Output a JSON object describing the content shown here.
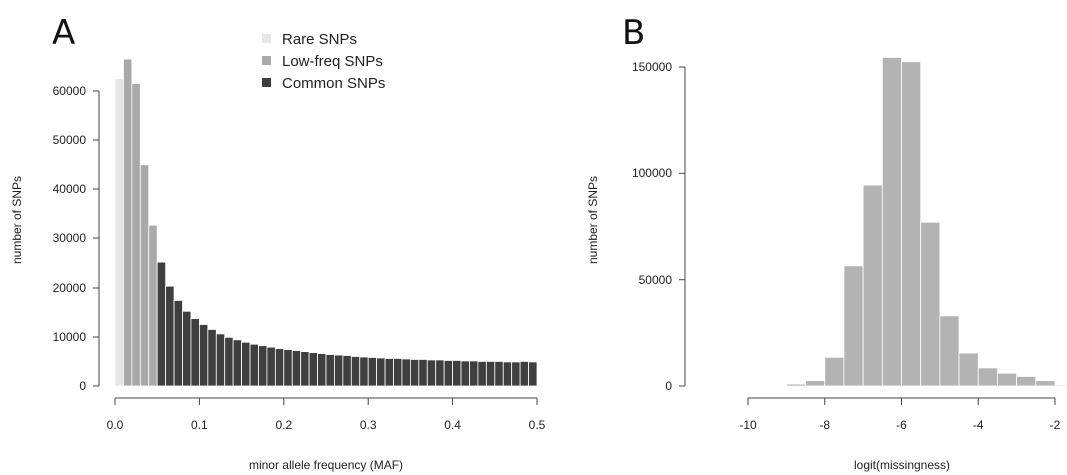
{
  "chart_data": [
    {
      "panel": "A",
      "type": "bar",
      "xlabel": "minor allele frequency (MAF)",
      "ylabel": "number of SNPs",
      "xlim": [
        0,
        0.5
      ],
      "ylim": [
        0,
        60000
      ],
      "x_ticks": [
        "0.0",
        "0.1",
        "0.2",
        "0.3",
        "0.4",
        "0.5"
      ],
      "x_tick_values": [
        0,
        0.1,
        0.2,
        0.3,
        0.4,
        0.5
      ],
      "y_ticks": [
        "0",
        "10000",
        "20000",
        "30000",
        "40000",
        "50000",
        "60000"
      ],
      "y_tick_values": [
        0,
        10000,
        20000,
        30000,
        40000,
        50000,
        60000
      ],
      "bin_width": 0.01,
      "bin_starts": [
        0.0,
        0.01,
        0.02,
        0.03,
        0.04,
        0.05,
        0.06,
        0.07,
        0.08,
        0.09,
        0.1,
        0.11,
        0.12,
        0.13,
        0.14,
        0.15,
        0.16,
        0.17,
        0.18,
        0.19,
        0.2,
        0.21,
        0.22,
        0.23,
        0.24,
        0.25,
        0.26,
        0.27,
        0.28,
        0.29,
        0.3,
        0.31,
        0.32,
        0.33,
        0.34,
        0.35,
        0.36,
        0.37,
        0.38,
        0.39,
        0.4,
        0.41,
        0.42,
        0.43,
        0.44,
        0.45,
        0.46,
        0.47,
        0.48,
        0.49
      ],
      "values": [
        62500,
        66500,
        61500,
        45000,
        32700,
        25200,
        20300,
        17400,
        15200,
        13700,
        12500,
        11500,
        10600,
        9900,
        9400,
        8900,
        8500,
        8200,
        7900,
        7600,
        7400,
        7200,
        7000,
        6800,
        6600,
        6400,
        6300,
        6200,
        6000,
        5900,
        5800,
        5700,
        5600,
        5600,
        5500,
        5400,
        5400,
        5300,
        5300,
        5200,
        5200,
        5100,
        5100,
        5000,
        5000,
        5000,
        4900,
        4900,
        5000,
        4900
      ],
      "category_per_bin": [
        "rare",
        "low",
        "low",
        "low",
        "low",
        "common",
        "common",
        "common",
        "common",
        "common",
        "common",
        "common",
        "common",
        "common",
        "common",
        "common",
        "common",
        "common",
        "common",
        "common",
        "common",
        "common",
        "common",
        "common",
        "common",
        "common",
        "common",
        "common",
        "common",
        "common",
        "common",
        "common",
        "common",
        "common",
        "common",
        "common",
        "common",
        "common",
        "common",
        "common",
        "common",
        "common",
        "common",
        "common",
        "common",
        "common",
        "common",
        "common",
        "common",
        "common"
      ],
      "legend": [
        {
          "key": "rare",
          "label": "Rare SNPs",
          "color": "#e6e6e6"
        },
        {
          "key": "low",
          "label": "Low-freq SNPs",
          "color": "#a9a9a9"
        },
        {
          "key": "common",
          "label": "Common SNPs",
          "color": "#3f3f3f"
        }
      ],
      "legend_position": "top-center"
    },
    {
      "panel": "B",
      "type": "bar",
      "xlabel": "logit(missingness)",
      "ylabel": "number of SNPs",
      "xlim": [
        -10,
        -2
      ],
      "ylim": [
        0,
        150000
      ],
      "x_ticks": [
        "-10",
        "-8",
        "-6",
        "-4",
        "-2"
      ],
      "x_tick_values": [
        -10,
        -8,
        -6,
        -4,
        -2
      ],
      "y_ticks": [
        "0",
        "50000",
        "100000",
        "150000"
      ],
      "y_tick_values": [
        0,
        50000,
        100000,
        150000
      ],
      "bin_width": 0.5,
      "bin_starts": [
        -10.0,
        -9.5,
        -9.0,
        -8.5,
        -8.0,
        -7.5,
        -7.0,
        -6.5,
        -6.0,
        -5.5,
        -5.0,
        -4.5,
        -4.0,
        -3.5,
        -3.0,
        -2.5,
        -2.0
      ],
      "values": [
        0,
        150,
        900,
        2500,
        13500,
        56500,
        94500,
        154500,
        152500,
        77000,
        33000,
        15500,
        8500,
        6000,
        4500,
        2500,
        500
      ],
      "bar_color": "#b3b3b3"
    }
  ],
  "panels": {
    "a": {
      "letter": "A",
      "xlabel": "minor allele frequency (MAF)",
      "ylabel": "number of SNPs",
      "x_ticks": [
        "0.0",
        "0.1",
        "0.2",
        "0.3",
        "0.4",
        "0.5"
      ],
      "y_ticks": [
        "0",
        "10000",
        "20000",
        "30000",
        "40000",
        "50000",
        "60000"
      ],
      "legend": [
        "Rare SNPs",
        "Low-freq SNPs",
        "Common SNPs"
      ]
    },
    "b": {
      "letter": "B",
      "xlabel": "logit(missingness)",
      "ylabel": "number of SNPs",
      "x_ticks": [
        "-10",
        "-8",
        "-6",
        "-4",
        "-2"
      ],
      "y_ticks": [
        "0",
        "50000",
        "100000",
        "150000"
      ]
    }
  }
}
